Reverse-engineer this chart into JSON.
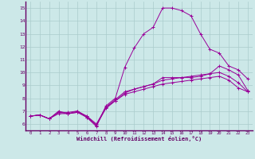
{
  "xlabel": "Windchill (Refroidissement éolien,°C)",
  "bg_color": "#cce8e8",
  "grid_color": "#aacccc",
  "line_color": "#990099",
  "axis_color": "#660066",
  "xlim": [
    -0.5,
    23.5
  ],
  "ylim": [
    5.5,
    15.5
  ],
  "xticks": [
    0,
    1,
    2,
    3,
    4,
    5,
    6,
    7,
    8,
    9,
    10,
    11,
    12,
    13,
    14,
    15,
    16,
    17,
    18,
    19,
    20,
    21,
    22,
    23
  ],
  "yticks": [
    6,
    7,
    8,
    9,
    10,
    11,
    12,
    13,
    14,
    15
  ],
  "line1_x": [
    0,
    1,
    2,
    3,
    4,
    5,
    6,
    7,
    8,
    9,
    10,
    11,
    12,
    13,
    14,
    15,
    16,
    17,
    18,
    19,
    20,
    21,
    22,
    23
  ],
  "line1_y": [
    6.6,
    6.7,
    6.4,
    7.0,
    6.8,
    7.0,
    6.5,
    5.8,
    7.4,
    8.0,
    10.4,
    11.9,
    13.0,
    13.5,
    15.0,
    15.0,
    14.8,
    14.4,
    13.0,
    11.8,
    11.5,
    10.5,
    10.2,
    9.5
  ],
  "line2_x": [
    0,
    1,
    2,
    3,
    4,
    5,
    6,
    7,
    8,
    9,
    10,
    11,
    12,
    13,
    14,
    15,
    16,
    17,
    18,
    19,
    20,
    21,
    22,
    23
  ],
  "line2_y": [
    6.6,
    6.7,
    6.4,
    6.9,
    6.8,
    6.9,
    6.6,
    5.9,
    7.3,
    7.8,
    8.4,
    8.7,
    8.9,
    9.1,
    9.6,
    9.6,
    9.6,
    9.6,
    9.7,
    9.9,
    10.5,
    10.2,
    9.8,
    8.6
  ],
  "line3_x": [
    0,
    1,
    2,
    3,
    4,
    5,
    6,
    7,
    8,
    9,
    10,
    11,
    12,
    13,
    14,
    15,
    16,
    17,
    18,
    19,
    20,
    21,
    22,
    23
  ],
  "line3_y": [
    6.6,
    6.7,
    6.4,
    6.9,
    6.9,
    7.0,
    6.6,
    6.0,
    7.3,
    7.9,
    8.5,
    8.7,
    8.9,
    9.1,
    9.4,
    9.5,
    9.6,
    9.7,
    9.8,
    9.9,
    10.0,
    9.7,
    9.2,
    8.5
  ],
  "line4_x": [
    0,
    1,
    2,
    3,
    4,
    5,
    6,
    7,
    8,
    9,
    10,
    11,
    12,
    13,
    14,
    15,
    16,
    17,
    18,
    19,
    20,
    21,
    22,
    23
  ],
  "line4_y": [
    6.6,
    6.7,
    6.4,
    6.8,
    6.8,
    6.9,
    6.5,
    5.9,
    7.2,
    7.8,
    8.3,
    8.5,
    8.7,
    8.9,
    9.1,
    9.2,
    9.3,
    9.4,
    9.5,
    9.6,
    9.7,
    9.4,
    8.8,
    8.5
  ]
}
